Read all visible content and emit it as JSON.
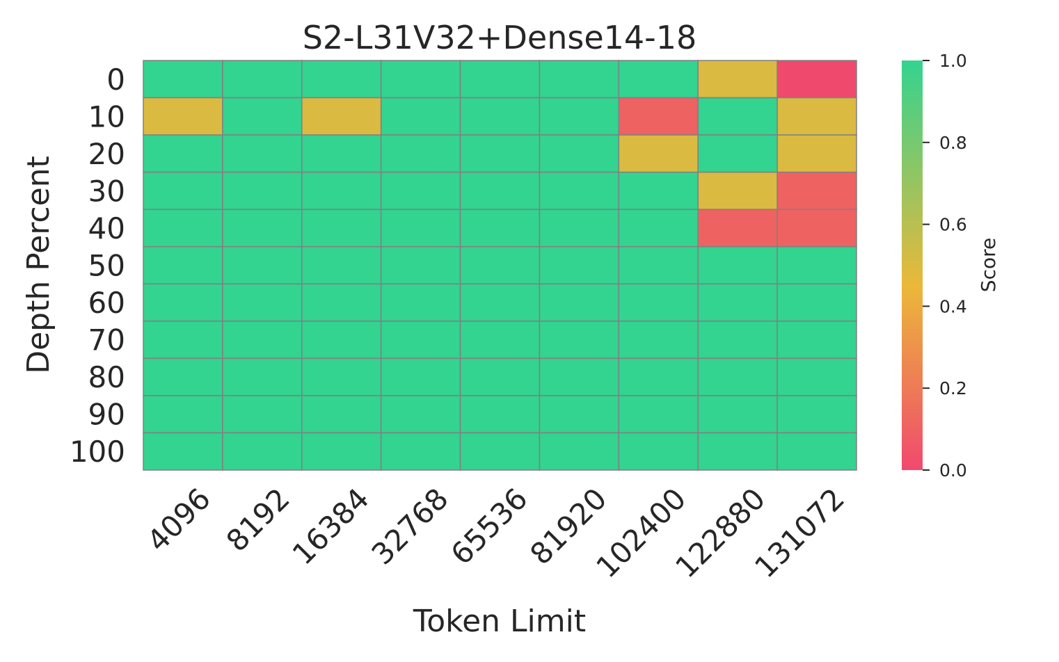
{
  "chart_data": {
    "type": "heatmap",
    "title": "S2-L31V32+Dense14-18",
    "xlabel": "Token Limit",
    "ylabel": "Depth Percent",
    "x_categories": [
      "4096",
      "8192",
      "16384",
      "32768",
      "65536",
      "81920",
      "102400",
      "122880",
      "131072"
    ],
    "y_categories": [
      "0",
      "10",
      "20",
      "30",
      "40",
      "50",
      "60",
      "70",
      "80",
      "90",
      "100"
    ],
    "values": [
      [
        1.0,
        1.0,
        1.0,
        1.0,
        1.0,
        1.0,
        1.0,
        0.5,
        0.0
      ],
      [
        0.5,
        1.0,
        0.5,
        1.0,
        1.0,
        1.0,
        0.1,
        1.0,
        0.5
      ],
      [
        1.0,
        1.0,
        1.0,
        1.0,
        1.0,
        1.0,
        0.5,
        1.0,
        0.5
      ],
      [
        1.0,
        1.0,
        1.0,
        1.0,
        1.0,
        1.0,
        1.0,
        0.5,
        0.1
      ],
      [
        1.0,
        1.0,
        1.0,
        1.0,
        1.0,
        1.0,
        1.0,
        0.1,
        0.1
      ],
      [
        1.0,
        1.0,
        1.0,
        1.0,
        1.0,
        1.0,
        1.0,
        1.0,
        1.0
      ],
      [
        1.0,
        1.0,
        1.0,
        1.0,
        1.0,
        1.0,
        1.0,
        1.0,
        1.0
      ],
      [
        1.0,
        1.0,
        1.0,
        1.0,
        1.0,
        1.0,
        1.0,
        1.0,
        1.0
      ],
      [
        1.0,
        1.0,
        1.0,
        1.0,
        1.0,
        1.0,
        1.0,
        1.0,
        1.0
      ],
      [
        1.0,
        1.0,
        1.0,
        1.0,
        1.0,
        1.0,
        1.0,
        1.0,
        1.0
      ],
      [
        1.0,
        1.0,
        1.0,
        1.0,
        1.0,
        1.0,
        1.0,
        1.0,
        1.0
      ]
    ],
    "colorbar": {
      "label": "Score",
      "range": [
        0.0,
        1.0
      ],
      "ticks": [
        "0.0",
        "0.2",
        "0.4",
        "0.6",
        "0.8",
        "1.0"
      ],
      "colors": [
        "#f0496e",
        "#ebb839",
        "#33d390"
      ]
    },
    "colors": {
      "high": "#33d390",
      "mid": "#ebb839",
      "low": "#f0496e",
      "grid": "#808080"
    }
  }
}
